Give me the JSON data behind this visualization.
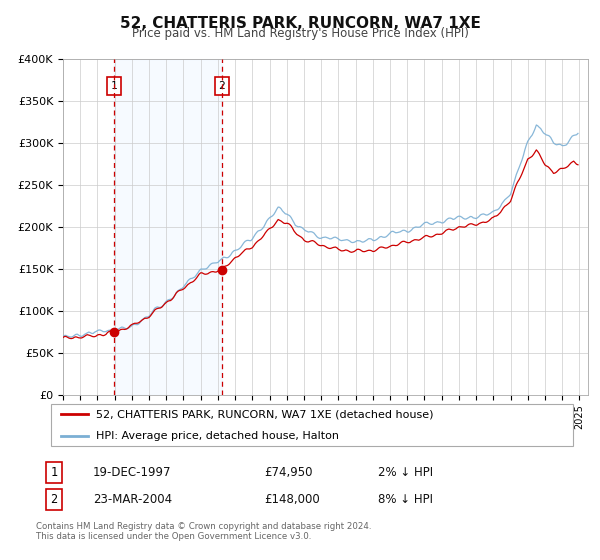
{
  "title": "52, CHATTERIS PARK, RUNCORN, WA7 1XE",
  "subtitle": "Price paid vs. HM Land Registry's House Price Index (HPI)",
  "ylim": [
    0,
    400000
  ],
  "yticks": [
    0,
    50000,
    100000,
    150000,
    200000,
    250000,
    300000,
    350000,
    400000
  ],
  "ytick_labels": [
    "£0",
    "£50K",
    "£100K",
    "£150K",
    "£200K",
    "£250K",
    "£300K",
    "£350K",
    "£400K"
  ],
  "xlim_start": 1995.0,
  "xlim_end": 2025.5,
  "sale1_date": 1997.97,
  "sale1_price": 74950,
  "sale1_label": "1",
  "sale1_display_date": "19-DEC-1997",
  "sale1_display_price": "£74,950",
  "sale1_display_hpi": "2% ↓ HPI",
  "sale2_date": 2004.23,
  "sale2_price": 148000,
  "sale2_label": "2",
  "sale2_display_date": "23-MAR-2004",
  "sale2_display_price": "£148,000",
  "sale2_display_hpi": "8% ↓ HPI",
  "hpi_color": "#7bafd4",
  "price_color": "#cc0000",
  "shade_color": "#ddeeff",
  "background_color": "#ffffff",
  "grid_color": "#cccccc",
  "legend1_label": "52, CHATTERIS PARK, RUNCORN, WA7 1XE (detached house)",
  "legend2_label": "HPI: Average price, detached house, Halton",
  "footer1": "Contains HM Land Registry data © Crown copyright and database right 2024.",
  "footer2": "This data is licensed under the Open Government Licence v3.0."
}
